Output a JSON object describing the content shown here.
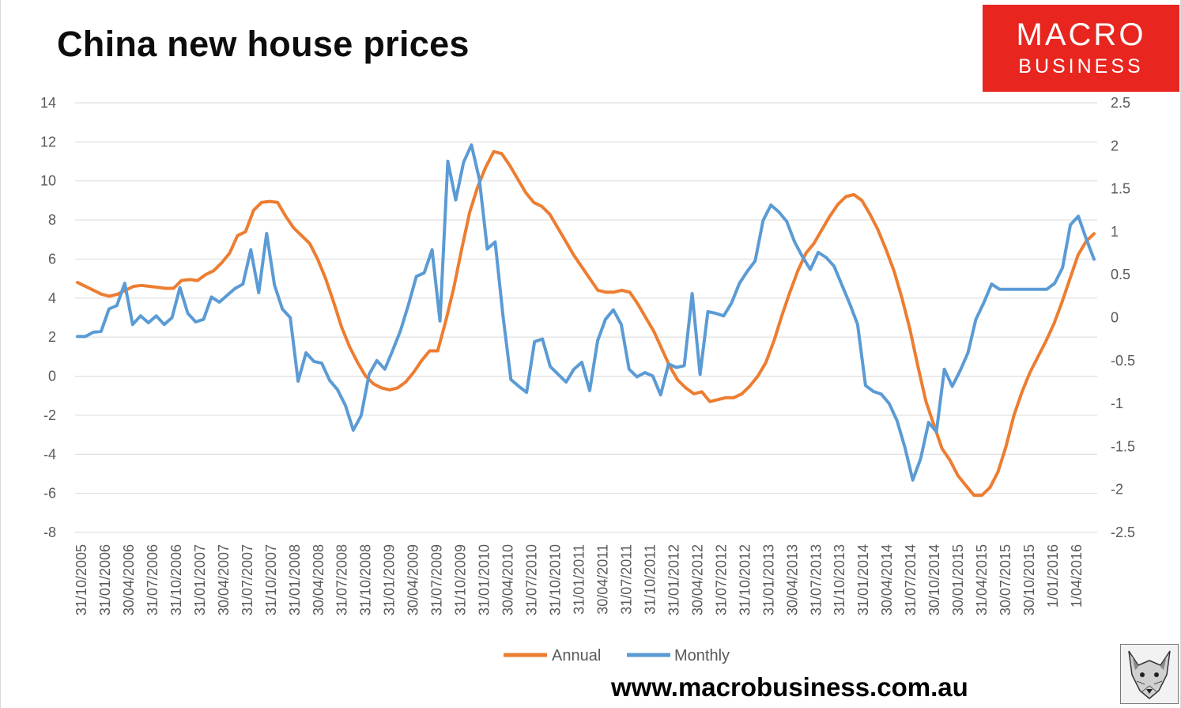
{
  "header": {
    "title": "China new house prices"
  },
  "logo": {
    "line1": "MACRO",
    "line2": "BUSINESS"
  },
  "footer": {
    "url": "www.macrobusiness.com.au"
  },
  "fox_icon": "fox-head-icon",
  "chart_data": {
    "type": "line",
    "title": "China new house prices",
    "xlabel": "",
    "ylabel": "",
    "x_tick_labels": [
      "31/10/2005",
      "31/01/2006",
      "30/04/2006",
      "31/07/2006",
      "31/10/2006",
      "31/01/2007",
      "30/04/2007",
      "31/07/2007",
      "31/10/2007",
      "31/01/2008",
      "30/04/2008",
      "31/07/2008",
      "31/10/2008",
      "31/01/2009",
      "30/04/2009",
      "31/07/2009",
      "31/10/2009",
      "31/01/2010",
      "30/04/2010",
      "31/07/2010",
      "31/10/2010",
      "31/01/2011",
      "30/04/2011",
      "31/07/2011",
      "31/10/2011",
      "31/01/2012",
      "30/04/2012",
      "31/07/2012",
      "31/10/2012",
      "31/01/2013",
      "30/04/2013",
      "31/07/2013",
      "31/10/2013",
      "31/01/2014",
      "30/04/2014",
      "31/07/2014",
      "30/10/2014",
      "30/01/2015",
      "31/04/2015",
      "30/07/2015",
      "30/10/2015",
      "1/01/2016",
      "1/04/2016"
    ],
    "y_left": {
      "ylim": [
        -8,
        14
      ],
      "ticks": [
        "14",
        "12",
        "10",
        "8",
        "6",
        "4",
        "2",
        "0",
        "-2",
        "-4",
        "-6",
        "-8"
      ]
    },
    "y_right": {
      "ylim": [
        -2.5,
        2.5
      ],
      "ticks": [
        "2.5",
        "2",
        "1.5",
        "1",
        "0.5",
        "0",
        "-0.5",
        "-1",
        "-1.5",
        "-2",
        "-2.5"
      ]
    },
    "grid": true,
    "legend_position": "bottom",
    "series": [
      {
        "name": "Annual",
        "axis": "left",
        "color": "#ed7d31",
        "values": [
          4.8,
          4.6,
          4.4,
          4.2,
          4.1,
          4.2,
          4.4,
          4.6,
          4.65,
          4.6,
          4.55,
          4.5,
          4.5,
          4.9,
          4.95,
          4.9,
          5.2,
          5.4,
          5.8,
          6.3,
          7.2,
          7.4,
          8.5,
          8.9,
          8.95,
          8.9,
          8.2,
          7.6,
          7.2,
          6.8,
          6.0,
          5.0,
          3.8,
          2.5,
          1.5,
          0.7,
          0.0,
          -0.4,
          -0.6,
          -0.7,
          -0.6,
          -0.3,
          0.2,
          0.8,
          1.3,
          1.3,
          2.8,
          4.5,
          6.5,
          8.4,
          9.7,
          10.7,
          11.5,
          11.4,
          10.8,
          10.1,
          9.4,
          8.9,
          8.7,
          8.3,
          7.6,
          6.9,
          6.2,
          5.6,
          5.0,
          4.4,
          4.3,
          4.3,
          4.4,
          4.3,
          3.7,
          3.0,
          2.3,
          1.4,
          0.5,
          -0.2,
          -0.6,
          -0.9,
          -0.8,
          -1.3,
          -1.2,
          -1.1,
          -1.1,
          -0.9,
          -0.5,
          0.0,
          0.7,
          1.8,
          3.1,
          4.3,
          5.4,
          6.3,
          6.8,
          7.5,
          8.2,
          8.8,
          9.2,
          9.3,
          9.0,
          8.3,
          7.5,
          6.5,
          5.4,
          4.0,
          2.4,
          0.5,
          -1.3,
          -2.5,
          -3.7,
          -4.3,
          -5.1,
          -5.6,
          -6.1,
          -6.1,
          -5.7,
          -4.9,
          -3.6,
          -2.0,
          -0.8,
          0.2,
          1.0,
          1.8,
          2.7,
          3.8,
          5.0,
          6.2,
          6.9,
          7.3
        ]
      },
      {
        "name": "Monthly",
        "axis": "right",
        "color": "#5b9bd5",
        "values": [
          -0.22,
          -0.22,
          -0.17,
          -0.16,
          0.1,
          0.14,
          0.4,
          -0.08,
          0.02,
          -0.06,
          0.02,
          -0.08,
          0.0,
          0.35,
          0.05,
          -0.05,
          -0.02,
          0.24,
          0.18,
          0.26,
          0.34,
          0.39,
          0.79,
          0.29,
          0.98,
          0.38,
          0.1,
          0.0,
          -0.74,
          -0.41,
          -0.51,
          -0.53,
          -0.73,
          -0.84,
          -1.02,
          -1.31,
          -1.14,
          -0.66,
          -0.5,
          -0.6,
          -0.38,
          -0.15,
          0.15,
          0.48,
          0.52,
          0.79,
          -0.04,
          1.82,
          1.37,
          1.81,
          2.01,
          1.61,
          0.8,
          0.88,
          0.02,
          -0.72,
          -0.8,
          -0.87,
          -0.28,
          -0.25,
          -0.57,
          -0.66,
          -0.75,
          -0.6,
          -0.52,
          -0.85,
          -0.27,
          -0.02,
          0.09,
          -0.08,
          -0.6,
          -0.69,
          -0.64,
          -0.68,
          -0.9,
          -0.54,
          -0.58,
          -0.56,
          0.28,
          -0.66,
          0.07,
          0.05,
          0.02,
          0.17,
          0.4,
          0.54,
          0.66,
          1.13,
          1.31,
          1.23,
          1.12,
          0.88,
          0.71,
          0.56,
          0.76,
          0.7,
          0.6,
          0.38,
          0.16,
          -0.08,
          -0.79,
          -0.86,
          -0.89,
          -1.0,
          -1.2,
          -1.51,
          -1.89,
          -1.64,
          -1.22,
          -1.33,
          -0.6,
          -0.8,
          -0.62,
          -0.41,
          -0.02,
          0.17,
          0.39,
          0.33,
          0.33,
          0.33,
          0.33,
          0.33,
          0.33,
          0.33,
          0.4,
          0.58,
          1.08,
          1.18,
          0.92,
          0.68
        ]
      }
    ]
  }
}
